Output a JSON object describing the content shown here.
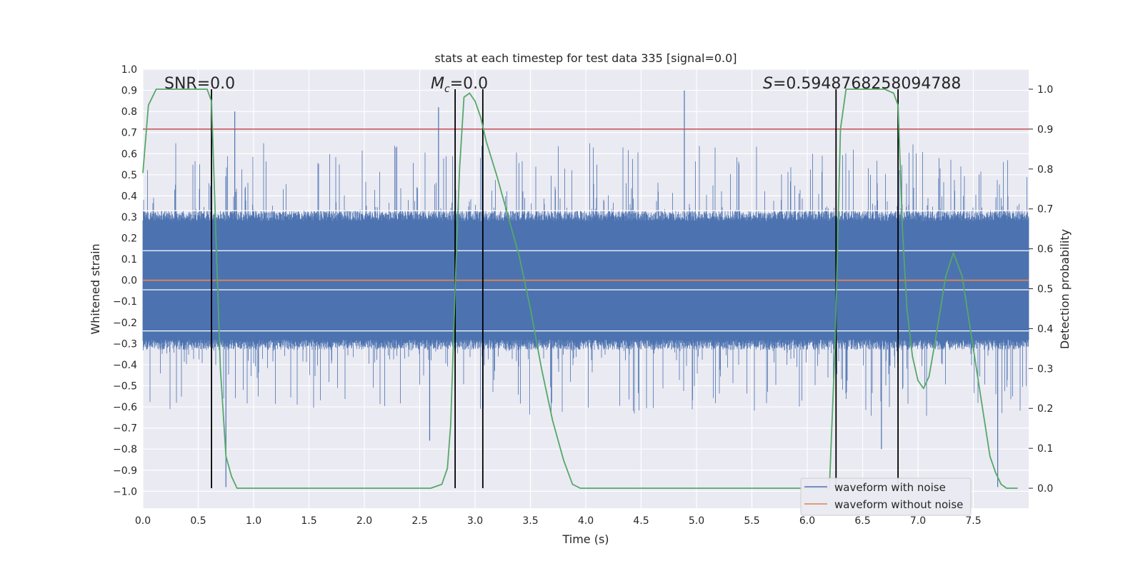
{
  "chart_data": {
    "type": "line",
    "title": "stats at each timestep for test data 335 [signal=0.0]",
    "xlabel": "Time (s)",
    "ylabel": "Whitened strain",
    "y2label": "Detection probability",
    "xlim": [
      0.0,
      8.0
    ],
    "ylim": [
      -1.08,
      1.0
    ],
    "y2lim": [
      -0.05,
      1.05
    ],
    "xticks": [
      "0.0",
      "0.5",
      "1.0",
      "1.5",
      "2.0",
      "2.5",
      "3.0",
      "3.5",
      "4.0",
      "4.5",
      "5.0",
      "5.5",
      "6.0",
      "6.5",
      "7.0",
      "7.5"
    ],
    "yticks": [
      "1.0",
      "0.9",
      "0.8",
      "0.7",
      "0.6",
      "0.5",
      "0.4",
      "0.3",
      "0.2",
      "0.1",
      "0.0",
      "−0.1",
      "−0.2",
      "−0.3",
      "−0.4",
      "−0.5",
      "−0.6",
      "−0.7",
      "−0.8",
      "−0.9",
      "−1.0"
    ],
    "y2ticks": [
      "0.0",
      "0.1",
      "0.2",
      "0.3",
      "0.4",
      "0.5",
      "0.6",
      "0.7",
      "0.8",
      "0.9",
      "1.0"
    ],
    "annotations": {
      "snr": "SNR=0.0",
      "mc_symbol": "M",
      "mc_sub": "c",
      "mc_value": "=0.0",
      "s_symbol": "S",
      "s_value": "=0.5948768258094788"
    },
    "threshold": 0.9,
    "vertical_lines": [
      0.62,
      2.82,
      3.07,
      6.26,
      6.82
    ],
    "legend": {
      "position": "lower-right",
      "entries": [
        "waveform with noise",
        "waveform without noise"
      ]
    },
    "series": [
      {
        "name": "waveform with noise",
        "color": "#4c72b0",
        "envelope": 0.33,
        "tails": 0.65,
        "highlights": [
          [
            0.83,
            0.8
          ],
          [
            2.67,
            0.82
          ],
          [
            4.89,
            0.9
          ],
          [
            2.59,
            -0.76
          ],
          [
            0.75,
            -0.98
          ],
          [
            7.72,
            -0.98
          ],
          [
            6.67,
            -0.8
          ]
        ]
      },
      {
        "name": "waveform without noise",
        "color": "#dd8452",
        "value": 0.0
      },
      {
        "name": "detection probability",
        "color": "#55a868",
        "x": [
          0.0,
          0.05,
          0.12,
          0.2,
          0.3,
          0.5,
          0.58,
          0.62,
          0.66,
          0.7,
          0.75,
          0.8,
          0.85,
          0.9,
          1.0,
          2.0,
          2.6,
          2.7,
          2.75,
          2.78,
          2.82,
          2.86,
          2.9,
          2.95,
          3.0,
          3.05,
          3.1,
          3.2,
          3.3,
          3.4,
          3.5,
          3.6,
          3.7,
          3.8,
          3.88,
          3.95,
          4.0,
          5.0,
          5.75,
          6.0,
          6.1,
          6.2,
          6.25,
          6.3,
          6.35,
          6.5,
          6.7,
          6.78,
          6.82,
          6.86,
          6.9,
          6.95,
          7.0,
          7.05,
          7.1,
          7.15,
          7.25,
          7.32,
          7.4,
          7.5,
          7.6,
          7.65,
          7.7,
          7.75,
          7.8,
          7.9
        ],
        "values": [
          0.79,
          0.96,
          1.0,
          1.0,
          1.0,
          1.0,
          1.0,
          0.97,
          0.63,
          0.3,
          0.08,
          0.03,
          0.0,
          0.0,
          0.0,
          0.0,
          0.0,
          0.01,
          0.05,
          0.16,
          0.5,
          0.8,
          0.98,
          0.99,
          0.97,
          0.93,
          0.87,
          0.78,
          0.68,
          0.58,
          0.45,
          0.3,
          0.17,
          0.07,
          0.01,
          0.0,
          0.0,
          0.0,
          0.0,
          0.0,
          0.0,
          0.0,
          0.35,
          0.9,
          1.0,
          1.0,
          1.0,
          0.99,
          0.96,
          0.65,
          0.45,
          0.33,
          0.27,
          0.25,
          0.28,
          0.36,
          0.53,
          0.59,
          0.53,
          0.35,
          0.17,
          0.08,
          0.04,
          0.01,
          0.0,
          0.0
        ]
      },
      {
        "name": "threshold",
        "color": "#c44e52",
        "value": 0.9
      }
    ]
  }
}
